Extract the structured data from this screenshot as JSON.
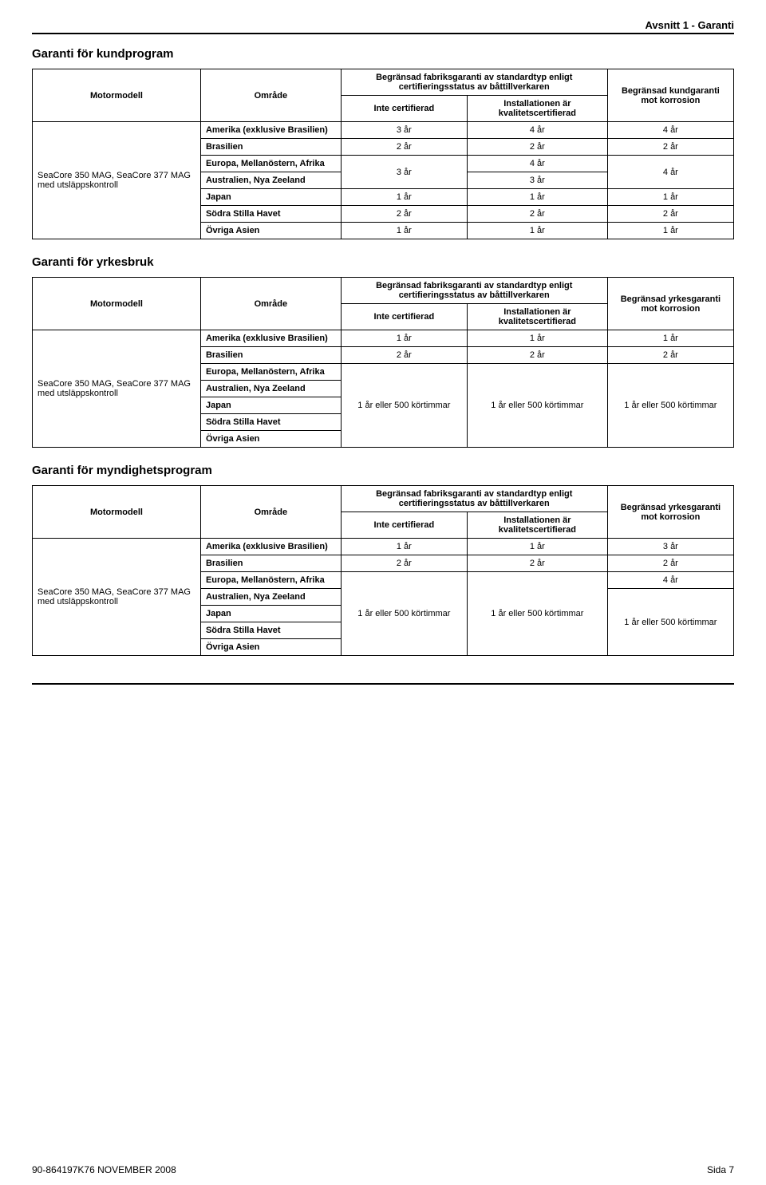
{
  "header": {
    "context": "Avsnitt 1 - Garanti"
  },
  "sections": {
    "kund": {
      "title": "Garanti för kundprogram",
      "head": {
        "model": "Motormodell",
        "region": "Område",
        "std_span": "Begränsad fabriksgaranti av standardtyp enligt certifieringsstatus av båttillverkaren",
        "not_cert": "Inte certifierad",
        "inst_cert": "Installationen är kvalitetscertifierad",
        "corrosion": "Begränsad kundgaranti mot korrosion"
      },
      "model": "SeaCore 350 MAG, SeaCore 377 MAG med utsläppskontroll",
      "rows": [
        {
          "region": "Amerika (exklusive Brasilien)",
          "c1": "3 år",
          "c2": "4 år",
          "c3": "4 år"
        },
        {
          "region": "Brasilien",
          "c1": "2 år",
          "c2": "2 år",
          "c3": "2 år"
        },
        {
          "region": "Europa, Mellanöstern, Afrika",
          "c1": "3 år",
          "c2": "4 år",
          "c3": "4 år",
          "merge_c1": true,
          "merge_c3": true
        },
        {
          "region": "Australien, Nya Zeeland",
          "c2": "3 år"
        },
        {
          "region": "Japan",
          "c1": "1 år",
          "c2": "1 år",
          "c3": "1 år"
        },
        {
          "region": "Södra Stilla Havet",
          "c1": "2 år",
          "c2": "2 år",
          "c3": "2 år"
        },
        {
          "region": "Övriga Asien",
          "c1": "1 år",
          "c2": "1 år",
          "c3": "1 år"
        }
      ]
    },
    "yrkes": {
      "title": "Garanti för yrkesbruk",
      "head": {
        "model": "Motormodell",
        "region": "Område",
        "std_span": "Begränsad fabriksgaranti av standardtyp enligt certifieringsstatus av båttillverkaren",
        "not_cert": "Inte certifierad",
        "inst_cert": "Installationen är kvalitetscertifierad",
        "corrosion": "Begränsad yrkesgaranti mot korrosion"
      },
      "model": "SeaCore 350 MAG, SeaCore 377 MAG med utsläppskontroll",
      "rows": [
        {
          "region": "Amerika (exklusive Brasilien)",
          "c1": "1 år",
          "c2": "1 år",
          "c3": "1 år"
        },
        {
          "region": "Brasilien",
          "c1": "2 år",
          "c2": "2 år",
          "c3": "2 år"
        },
        {
          "region": "Europa, Mellanöstern, Afrika"
        },
        {
          "region": "Australien, Nya Zeeland"
        },
        {
          "region": "Japan"
        },
        {
          "region": "Södra Stilla Havet"
        },
        {
          "region": "Övriga Asien"
        }
      ],
      "merged": {
        "c1": "1 år eller 500 körtimmar",
        "c2": "1 år eller 500 körtimmar",
        "c3": "1 år eller 500 körtimmar"
      }
    },
    "myndig": {
      "title": "Garanti för myndighetsprogram",
      "head": {
        "model": "Motormodell",
        "region": "Område",
        "std_span": "Begränsad fabriksgaranti av standardtyp enligt certifieringsstatus av båttillverkaren",
        "not_cert": "Inte certifierad",
        "inst_cert": "Installationen är kvalitetscertifierad",
        "corrosion": "Begränsad yrkesgaranti mot korrosion"
      },
      "model": "SeaCore 350 MAG, SeaCore 377 MAG med utsläppskontroll",
      "rows": [
        {
          "region": "Amerika (exklusive Brasilien)",
          "c1": "1 år",
          "c2": "1 år",
          "c3": "3 år"
        },
        {
          "region": "Brasilien",
          "c1": "2 år",
          "c2": "2 år",
          "c3": "2 år"
        },
        {
          "region": "Europa, Mellanöstern, Afrika",
          "c3": "4 år"
        },
        {
          "region": "Australien, Nya Zeeland"
        },
        {
          "region": "Japan"
        },
        {
          "region": "Södra Stilla Havet"
        },
        {
          "region": "Övriga Asien"
        }
      ],
      "merged": {
        "c1": "1 år eller 500 körtimmar",
        "c2": "1 år eller 500 körtimmar",
        "c3_lower": "1 år eller 500 körtimmar"
      }
    }
  },
  "footer": {
    "left": "90-864197K76   NOVEMBER  2008",
    "right": "Sida  7"
  },
  "layout": {
    "col_widths": {
      "model": "24%",
      "region": "20%",
      "c1": "18%",
      "c2": "20%",
      "c3": "18%"
    }
  }
}
